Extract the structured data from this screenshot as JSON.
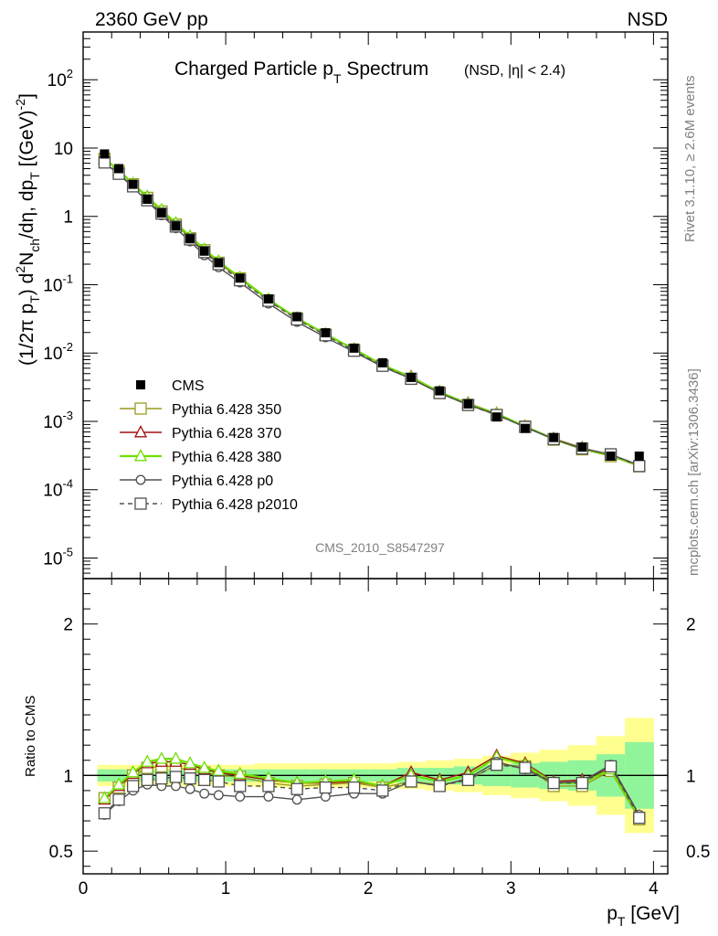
{
  "header": {
    "left": "2360 GeV pp",
    "right": "NSD"
  },
  "side_labels": {
    "rivet": "Rivet 3.1.10, ≥ 2.6M events",
    "mcplots": "mcplots.cern.ch [arXiv:1306.3436]"
  },
  "analysis_id": "CMS_2010_S8547297",
  "chart_data": [
    {
      "type": "line",
      "title": "Charged Particle pT Spectrum",
      "title_parts": {
        "main": "Charged Particle p",
        "sub": "T",
        "rest": " Spectrum",
        "tag": "(NSD, |η| < 2.4)"
      },
      "ylabel": "(1/2π pT) d²Nch/dη, dpT [(GeV)⁻²]",
      "ylabel_parts": {
        "a": "(1/2π p",
        "b": "T",
        "c": ") d",
        "d": "2",
        "e": "N",
        "f": "ch",
        "g": "/dη, dp",
        "h": "T",
        "i": " [(GeV)",
        "j": "-2",
        "k": "]"
      },
      "yscale": "log",
      "ylim": [
        5e-06,
        500
      ],
      "xlim": [
        0,
        4.1
      ],
      "yticks": [
        {
          "value": 1e-05,
          "base": "10",
          "exp": "-5"
        },
        {
          "value": 0.0001,
          "base": "10",
          "exp": "-4"
        },
        {
          "value": 0.001,
          "base": "10",
          "exp": "-3"
        },
        {
          "value": 0.01,
          "base": "10",
          "exp": "-2"
        },
        {
          "value": 0.1,
          "base": "10",
          "exp": "-1"
        },
        {
          "value": 1,
          "base": "1",
          "exp": ""
        },
        {
          "value": 10,
          "base": "10",
          "exp": ""
        },
        {
          "value": 100,
          "base": "10",
          "exp": "2"
        }
      ],
      "legend_position": "left-middle",
      "x": [
        0.15,
        0.25,
        0.35,
        0.45,
        0.55,
        0.65,
        0.75,
        0.85,
        0.95,
        1.1,
        1.3,
        1.5,
        1.7,
        1.9,
        2.1,
        2.3,
        2.5,
        2.7,
        2.9,
        3.1,
        3.3,
        3.5,
        3.7,
        3.9
      ],
      "series": [
        {
          "name": "CMS",
          "color": "#000000",
          "marker": "filled-square",
          "dashed": false,
          "values": [
            8.2,
            5.0,
            2.95,
            1.78,
            1.12,
            0.72,
            0.47,
            0.31,
            0.21,
            0.125,
            0.062,
            0.034,
            0.0198,
            0.0118,
            0.0072,
            0.0044,
            0.0028,
            0.0018,
            0.00116,
            0.00079,
            0.00058,
            0.00042,
            0.00031,
            0.00031
          ]
        },
        {
          "name": "Pythia 6.428 350",
          "color": "#9a9a20",
          "marker": "open-square",
          "dashed": false,
          "values": [
            6.97,
            4.6,
            2.95,
            1.87,
            1.18,
            0.76,
            0.48,
            0.32,
            0.21,
            0.124,
            0.059,
            0.032,
            0.0186,
            0.0112,
            0.0066,
            0.0042,
            0.0026,
            0.00174,
            0.00124,
            0.00084,
            0.00054,
            0.00039,
            0.00031,
            0.00022
          ]
        },
        {
          "name": "Pythia 6.428 370",
          "color": "#a01010",
          "marker": "open-triangle",
          "dashed": false,
          "values": [
            6.89,
            4.65,
            2.98,
            1.93,
            1.22,
            0.78,
            0.5,
            0.32,
            0.21,
            0.125,
            0.06,
            0.032,
            0.0188,
            0.0113,
            0.0067,
            0.0045,
            0.0027,
            0.00184,
            0.00131,
            0.00085,
            0.00056,
            0.00041,
            0.00032,
            0.000225
          ]
        },
        {
          "name": "Pythia 6.428 380",
          "color": "#6ee000",
          "marker": "open-triangle",
          "dashed": false,
          "values": [
            7.0,
            4.7,
            3.0,
            1.94,
            1.24,
            0.8,
            0.51,
            0.33,
            0.22,
            0.127,
            0.061,
            0.0325,
            0.019,
            0.0114,
            0.0067,
            0.0044,
            0.0027,
            0.0018,
            0.0013,
            0.00084,
            0.00055,
            0.0004,
            0.00032,
            0.000225
          ]
        },
        {
          "name": "Pythia 6.428 p0",
          "color": "#505050",
          "marker": "open-circle",
          "dashed": false,
          "values": [
            6.07,
            4.15,
            2.66,
            1.67,
            1.04,
            0.67,
            0.43,
            0.27,
            0.18,
            0.108,
            0.053,
            0.0286,
            0.017,
            0.0104,
            0.0063,
            0.0042,
            0.0026,
            0.00176,
            0.00126,
            0.00082,
            0.00055,
            0.0004,
            0.00033,
            0.000229
          ]
        },
        {
          "name": "Pythia 6.428 p2010",
          "color": "#505050",
          "marker": "open-square",
          "dashed": true,
          "values": [
            6.15,
            4.2,
            2.75,
            1.72,
            1.1,
            0.71,
            0.46,
            0.3,
            0.2,
            0.116,
            0.058,
            0.031,
            0.0182,
            0.0108,
            0.0065,
            0.0042,
            0.0026,
            0.00174,
            0.00124,
            0.00083,
            0.00055,
            0.0004,
            0.00033,
            0.000222
          ]
        }
      ]
    },
    {
      "type": "line",
      "ylabel": "Ratio to CMS",
      "xlabel": "pT [GeV]",
      "xlabel_parts": {
        "main": "p",
        "sub": "T",
        "rest": " [GeV]"
      },
      "xlim": [
        0,
        4.1
      ],
      "ylim": [
        0.35,
        2.3
      ],
      "yticks": [
        "0.5",
        "1",
        "2"
      ],
      "xticks": [
        "0",
        "1",
        "2",
        "3",
        "4"
      ],
      "x_edges": [
        0.1,
        0.2,
        0.3,
        0.4,
        0.5,
        0.6,
        0.7,
        0.8,
        0.9,
        1.0,
        1.2,
        1.4,
        1.6,
        1.8,
        2.0,
        2.2,
        2.4,
        2.6,
        2.8,
        3.0,
        3.2,
        3.4,
        3.6,
        3.8,
        4.0
      ],
      "band_yellow_halfwidth": [
        0.07,
        0.07,
        0.07,
        0.07,
        0.07,
        0.07,
        0.07,
        0.07,
        0.07,
        0.07,
        0.08,
        0.08,
        0.08,
        0.08,
        0.08,
        0.09,
        0.1,
        0.11,
        0.13,
        0.15,
        0.17,
        0.2,
        0.26,
        0.38
      ],
      "band_green_halfwidth": [
        0.04,
        0.04,
        0.04,
        0.04,
        0.04,
        0.04,
        0.04,
        0.04,
        0.04,
        0.04,
        0.04,
        0.04,
        0.04,
        0.04,
        0.04,
        0.05,
        0.05,
        0.06,
        0.07,
        0.08,
        0.09,
        0.1,
        0.14,
        0.22
      ],
      "x": [
        0.15,
        0.25,
        0.35,
        0.45,
        0.55,
        0.65,
        0.75,
        0.85,
        0.95,
        1.1,
        1.3,
        1.5,
        1.7,
        1.9,
        2.1,
        2.3,
        2.5,
        2.7,
        2.9,
        3.1,
        3.3,
        3.5,
        3.7,
        3.9
      ],
      "series": [
        {
          "name": "Pythia 6.428 350",
          "values": [
            0.85,
            0.92,
            1.0,
            1.05,
            1.06,
            1.06,
            1.03,
            1.02,
            1.0,
            0.99,
            0.95,
            0.93,
            0.94,
            0.95,
            0.92,
            0.96,
            0.94,
            0.97,
            1.07,
            1.06,
            0.93,
            0.93,
            1.03,
            0.71
          ]
        },
        {
          "name": "Pythia 6.428 370",
          "values": [
            0.84,
            0.93,
            1.01,
            1.08,
            1.09,
            1.09,
            1.07,
            1.04,
            1.02,
            1.0,
            0.97,
            0.95,
            0.95,
            0.96,
            0.93,
            1.02,
            0.97,
            1.02,
            1.13,
            1.08,
            0.96,
            0.97,
            1.05,
            0.73
          ]
        },
        {
          "name": "Pythia 6.428 380",
          "values": [
            0.85,
            0.94,
            1.02,
            1.09,
            1.11,
            1.11,
            1.08,
            1.05,
            1.03,
            1.01,
            0.98,
            0.95,
            0.96,
            0.97,
            0.93,
            1.0,
            0.96,
            1.0,
            1.12,
            1.07,
            0.95,
            0.95,
            1.04,
            0.72
          ]
        },
        {
          "name": "Pythia 6.428 p0",
          "values": [
            0.74,
            0.83,
            0.9,
            0.94,
            0.93,
            0.93,
            0.91,
            0.88,
            0.87,
            0.86,
            0.86,
            0.84,
            0.86,
            0.88,
            0.88,
            0.96,
            0.93,
            0.98,
            1.09,
            1.04,
            0.95,
            0.96,
            1.07,
            0.74
          ]
        },
        {
          "name": "Pythia 6.428 p2010",
          "values": [
            0.75,
            0.84,
            0.93,
            0.97,
            0.98,
            0.99,
            0.98,
            0.97,
            0.96,
            0.93,
            0.93,
            0.91,
            0.92,
            0.92,
            0.9,
            0.96,
            0.93,
            0.97,
            1.07,
            1.05,
            0.95,
            0.95,
            1.06,
            0.72
          ]
        }
      ]
    }
  ]
}
